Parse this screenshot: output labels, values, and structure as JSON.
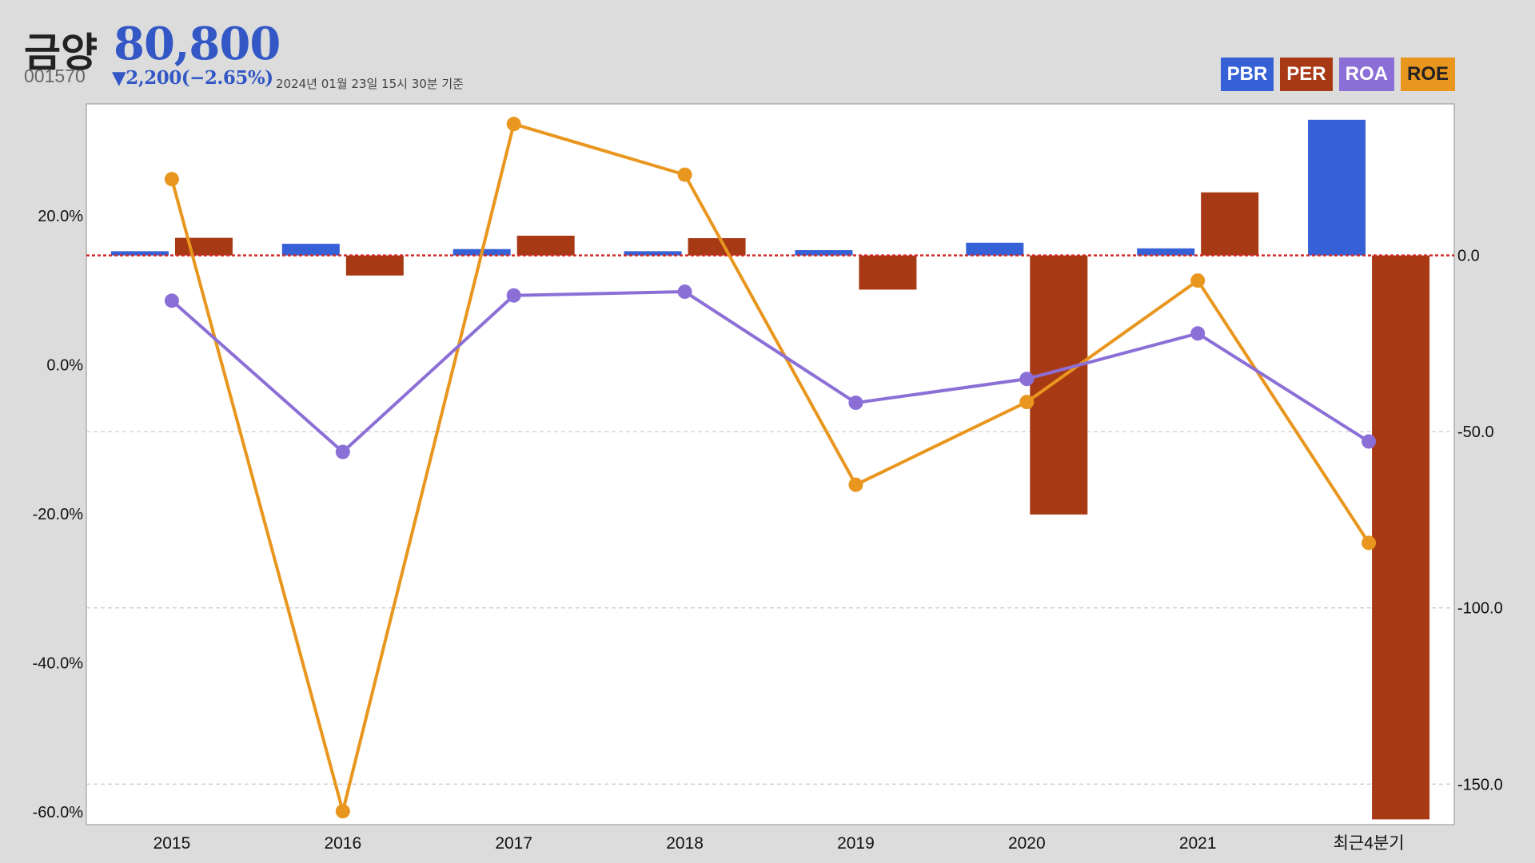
{
  "header": {
    "name": "금양",
    "price": "80,800",
    "code": "001570",
    "change": "▼2,200(−2.65%)",
    "timestamp": "2024년 01월 23일 15시 30분 기준"
  },
  "colors": {
    "PBR": "#3560d6",
    "PER": "#a83915",
    "ROA": "#8c6fd6",
    "ROE": "#e8961e",
    "zero_line": "#d42a2a",
    "grid": "#c8c8c8",
    "plot_bg": "#ffffff",
    "page_bg": "#dcdcdc"
  },
  "chart_data": {
    "type": "bar",
    "categories": [
      "2015",
      "2016",
      "2017",
      "2018",
      "2019",
      "2020",
      "2021",
      "최근4분기"
    ],
    "left_axis": {
      "ticks": [
        "20.0%",
        "0.0%",
        "-20.0%",
        "-40.0%",
        "-60.0%"
      ],
      "tick_values": [
        20,
        0,
        -20,
        -40,
        -60
      ],
      "ylim": [
        -61.7,
        35
      ]
    },
    "right_axis": {
      "ticks": [
        "0.0",
        "-50.0",
        "-100.0",
        "-150.0"
      ],
      "tick_values": [
        0,
        -50,
        -100,
        -150
      ],
      "ylim": [
        -161.5,
        43
      ]
    },
    "legend": [
      "PBR",
      "PER",
      "ROA",
      "ROE"
    ],
    "legend_placement": "top-right",
    "grid": true,
    "series": [
      {
        "name": "PBR",
        "axis": "right",
        "kind": "bar",
        "values": [
          1.2,
          3.3,
          1.8,
          1.2,
          1.5,
          3.6,
          2.0,
          38.5
        ]
      },
      {
        "name": "PER",
        "axis": "right",
        "kind": "bar",
        "values": [
          5.0,
          -5.7,
          5.6,
          4.9,
          -9.7,
          -73.5,
          17.9,
          -160.0
        ]
      },
      {
        "name": "ROA",
        "axis": "left",
        "kind": "line",
        "values": [
          8.6,
          -11.7,
          9.3,
          9.8,
          -5.1,
          -1.9,
          4.2,
          -10.3
        ]
      },
      {
        "name": "ROE",
        "axis": "left",
        "kind": "line",
        "values": [
          24.9,
          -59.9,
          32.3,
          25.5,
          -16.1,
          -5.0,
          11.3,
          -23.9
        ]
      }
    ]
  }
}
